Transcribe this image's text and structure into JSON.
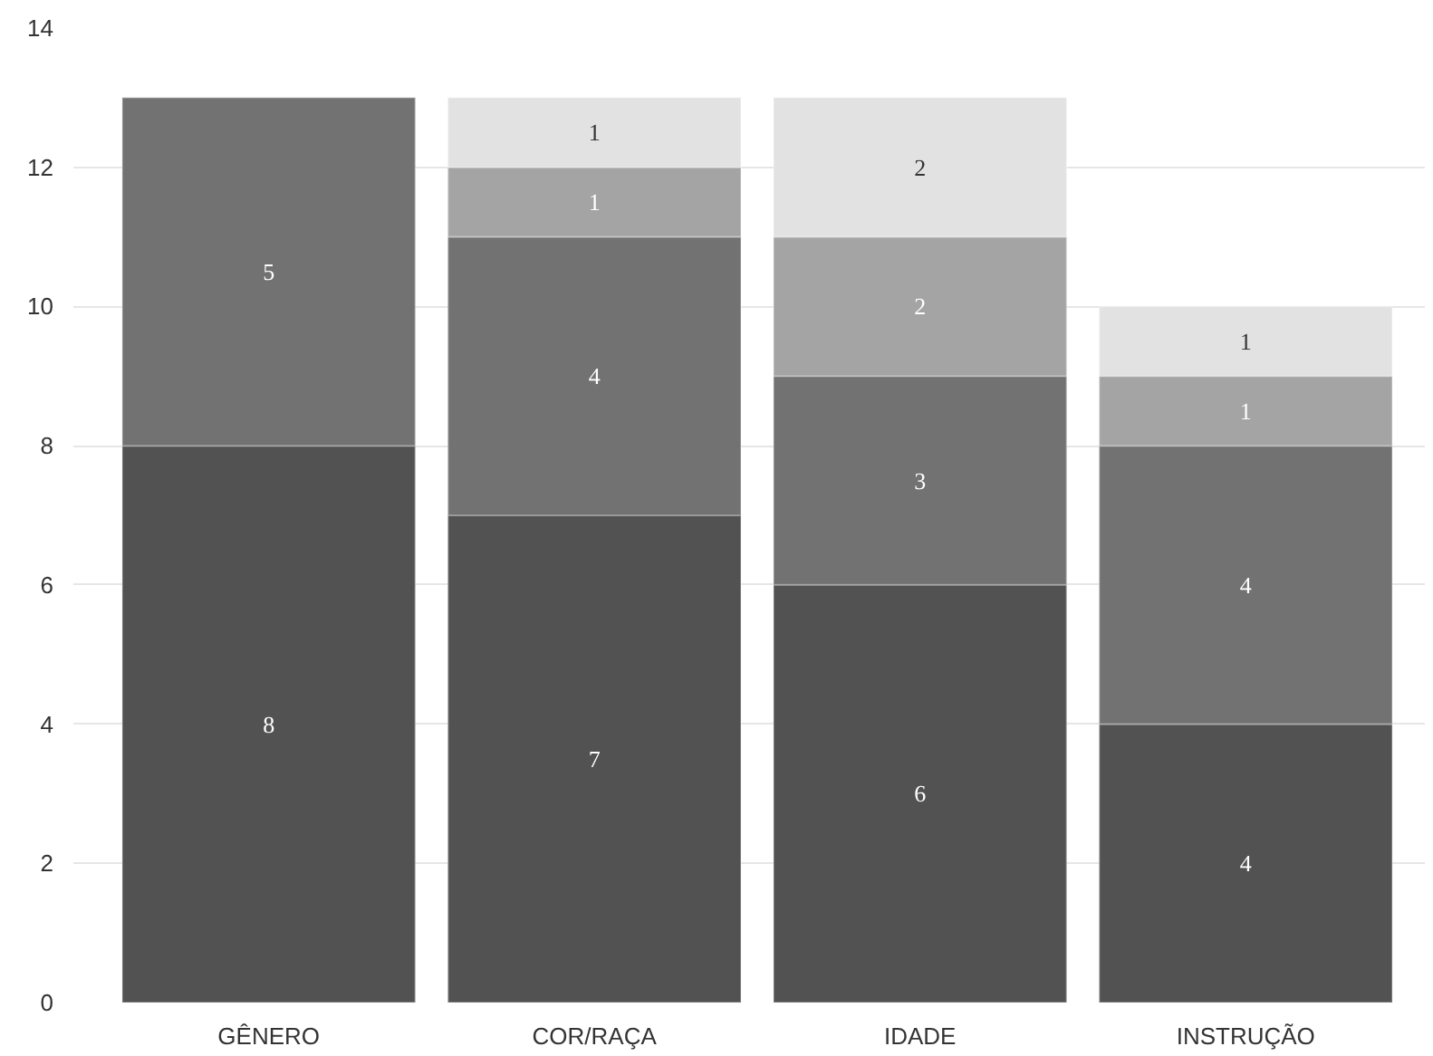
{
  "chart_data": {
    "type": "bar",
    "stacked": true,
    "categories": [
      "GÊNERO",
      "COR/RAÇA",
      "IDADE",
      "INSTRUÇÃO"
    ],
    "series": [
      {
        "color": "#525252",
        "values": [
          8,
          7,
          6,
          4
        ]
      },
      {
        "color": "#727272",
        "values": [
          5,
          4,
          3,
          4
        ]
      },
      {
        "color": "#a4a4a4",
        "values": [
          null,
          1,
          2,
          1
        ]
      },
      {
        "color": "#e2e2e2",
        "values": [
          null,
          1,
          2,
          1
        ]
      }
    ],
    "ylim": [
      0,
      14
    ],
    "yticks": [
      0,
      2,
      4,
      6,
      8,
      10,
      12,
      14
    ],
    "grid": "y",
    "data_labels": true
  }
}
